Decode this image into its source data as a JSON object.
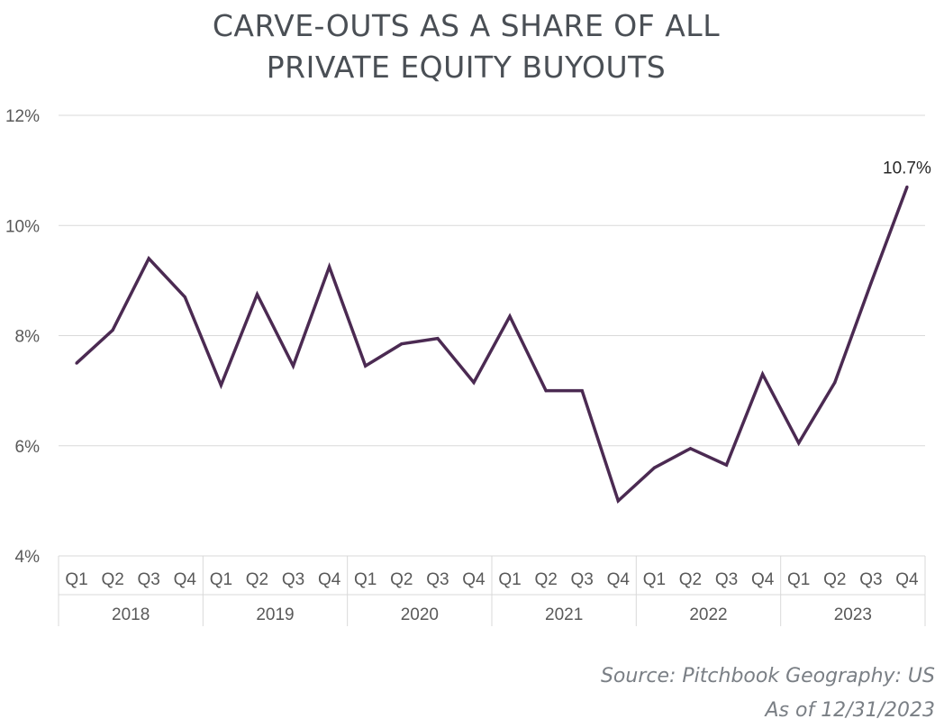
{
  "chart_data": {
    "type": "line",
    "title": "CARVE-OUTS AS A SHARE OF ALL PRIVATE EQUITY BUYOUTS",
    "title_lines": [
      "CARVE-OUTS AS A SHARE OF ALL",
      "PRIVATE EQUITY BUYOUTS"
    ],
    "xlabel": "",
    "ylabel": "",
    "ylim": [
      4,
      12
    ],
    "yticks": [
      4,
      6,
      8,
      10,
      12
    ],
    "ytick_labels": [
      "4%",
      "6%",
      "8%",
      "10%",
      "12%"
    ],
    "grid": true,
    "categories": [
      "Q1",
      "Q2",
      "Q3",
      "Q4",
      "Q1",
      "Q2",
      "Q3",
      "Q4",
      "Q1",
      "Q2",
      "Q3",
      "Q4",
      "Q1",
      "Q2",
      "Q3",
      "Q4",
      "Q1",
      "Q2",
      "Q3",
      "Q4",
      "Q1",
      "Q2",
      "Q3",
      "Q4"
    ],
    "groups": [
      "2018",
      "2019",
      "2020",
      "2021",
      "2022",
      "2023"
    ],
    "series": [
      {
        "name": "Carve-outs share",
        "color": "#4b2a52",
        "values": [
          7.5,
          8.1,
          9.4,
          8.7,
          7.1,
          8.75,
          7.45,
          9.25,
          7.45,
          7.85,
          7.95,
          7.15,
          8.35,
          7.0,
          7.0,
          5.0,
          5.6,
          5.95,
          5.65,
          7.3,
          6.05,
          7.15,
          8.95,
          10.7
        ]
      }
    ],
    "annotations": [
      {
        "index": 23,
        "text": "10.7%"
      }
    ]
  },
  "source": {
    "line1": "Source: Pitchbook Geography: US",
    "line2": "As of 12/31/2023"
  }
}
